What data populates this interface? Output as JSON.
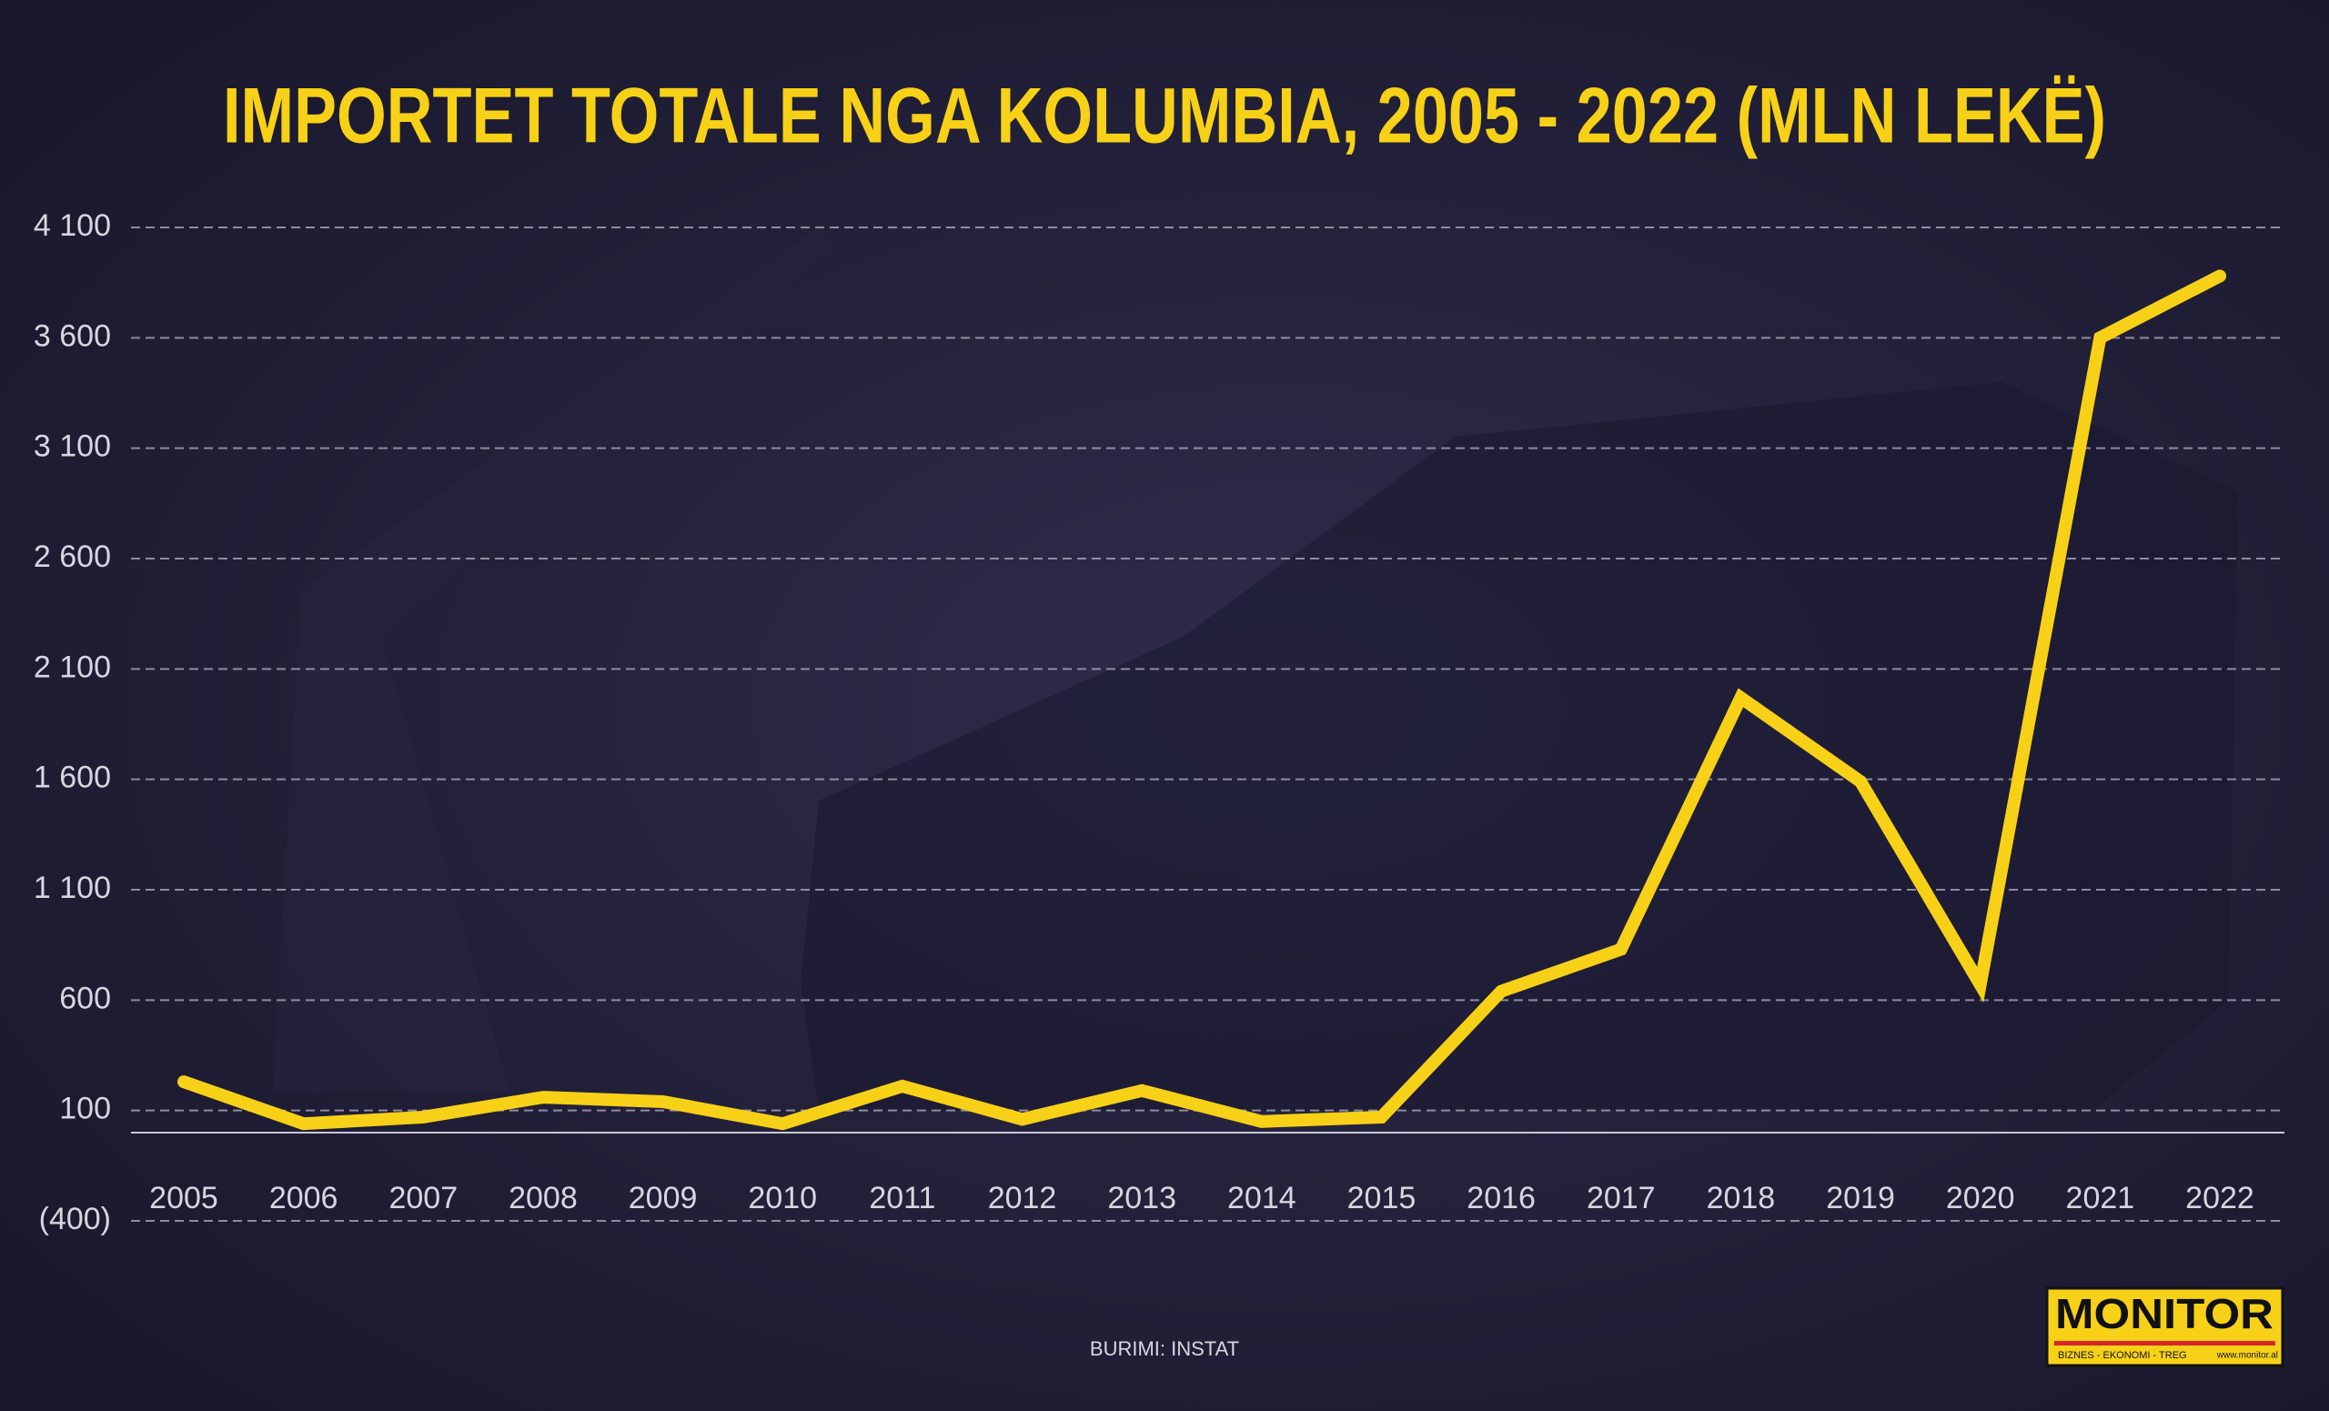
{
  "chart_data": {
    "type": "line",
    "title": "IMPORTET TOTALE NGA KOLUMBIA, 2005 - 2022 (MLN LEKË)",
    "categories": [
      "2005",
      "2006",
      "2007",
      "2008",
      "2009",
      "2010",
      "2011",
      "2012",
      "2013",
      "2014",
      "2015",
      "2016",
      "2017",
      "2018",
      "2019",
      "2020",
      "2021",
      "2022"
    ],
    "series": [
      {
        "name": "Importet",
        "color": "#f7d117",
        "values": [
          230,
          40,
          70,
          160,
          140,
          40,
          210,
          60,
          190,
          50,
          70,
          640,
          830,
          1970,
          1590,
          670,
          3600,
          3880
        ]
      }
    ],
    "ylim": [
      -400,
      4100
    ],
    "yticks": [
      {
        "value": -400,
        "label": "(400)"
      },
      {
        "value": 100,
        "label": "100"
      },
      {
        "value": 600,
        "label": "600"
      },
      {
        "value": 1100,
        "label": "1 100"
      },
      {
        "value": 1600,
        "label": "1 600"
      },
      {
        "value": 2100,
        "label": "2 100"
      },
      {
        "value": 2600,
        "label": "2 600"
      },
      {
        "value": 3100,
        "label": "3 100"
      },
      {
        "value": 3600,
        "label": "3 600"
      },
      {
        "value": 4100,
        "label": "4 100"
      }
    ],
    "grid": true,
    "source": "BURIMI: INSTAT",
    "logo": {
      "name": "MONITOR",
      "tagline": "BIZNES - EKONOMI - TREG",
      "url": "www.monitor.al"
    }
  }
}
